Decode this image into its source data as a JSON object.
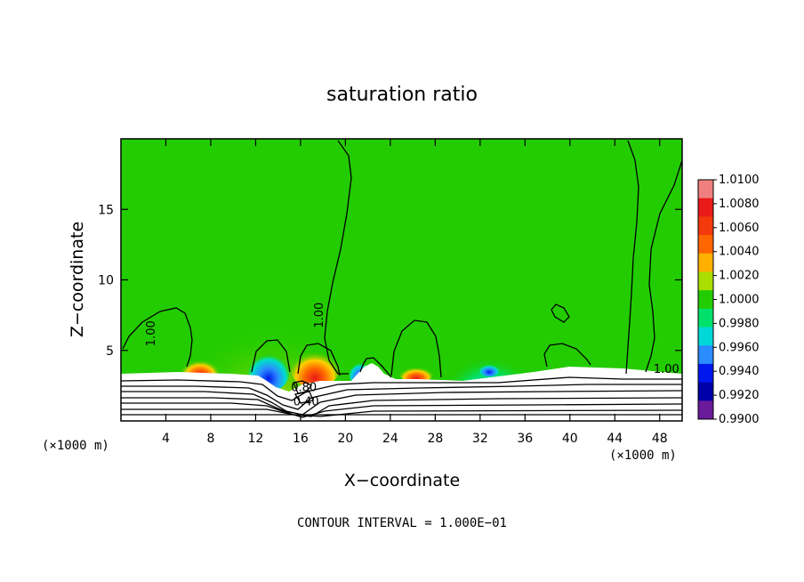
{
  "chart_data": {
    "type": "heatmap",
    "title": "saturation ratio",
    "xlabel": "X−coordinate",
    "ylabel": "Z−coordinate",
    "x_unit": "(×1000 m)",
    "xlim": [
      0,
      50
    ],
    "ylim": [
      0,
      20
    ],
    "x_ticks": [
      4,
      8,
      12,
      16,
      20,
      24,
      28,
      32,
      36,
      40,
      44,
      48
    ],
    "y_ticks": [
      5,
      10,
      15
    ],
    "footer": "CONTOUR INTERVAL = 1.000E−01",
    "contour_labels": [
      {
        "text": "1.00",
        "x": 3,
        "z": 6.2
      },
      {
        "text": "1.00",
        "x": 18,
        "z": 7.5
      },
      {
        "text": "1.00",
        "x": 48.6,
        "z": 3.4
      },
      {
        "text": "0.80",
        "x": 16.3,
        "z": 2.1
      },
      {
        "text": "0.40",
        "x": 16.5,
        "z": 1.1
      }
    ],
    "colorbar": {
      "min": 0.99,
      "max": 1.01,
      "labels": [
        "1.0100",
        "1.0080",
        "1.0060",
        "1.0040",
        "1.0020",
        "1.0000",
        "0.9980",
        "0.9960",
        "0.9940",
        "0.9920",
        "0.9900"
      ],
      "colors": [
        "#f08080",
        "#e81a1a",
        "#f23a0c",
        "#ff6600",
        "#ffb000",
        "#aadd00",
        "#22cc00",
        "#00e06a",
        "#00d8d8",
        "#2a8cff",
        "#0018ee",
        "#0000a8",
        "#6a1a9a"
      ]
    }
  }
}
